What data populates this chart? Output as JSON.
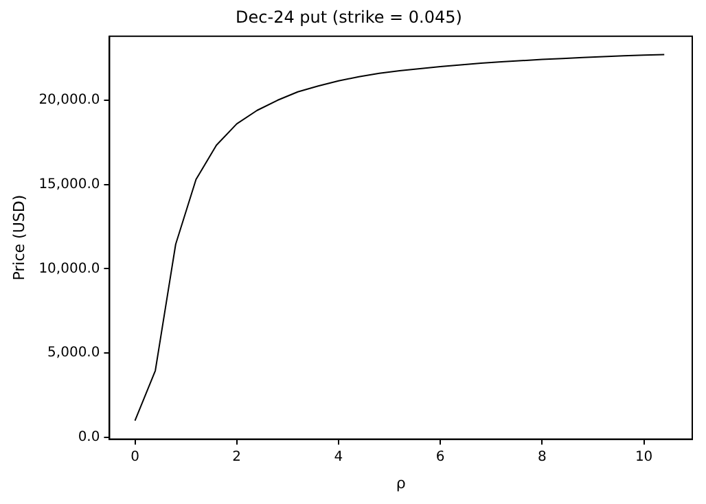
{
  "chart_data": {
    "type": "line",
    "title": "Dec-24 put (strike = 0.045)",
    "xlabel": "ρ",
    "ylabel": "Price (USD)",
    "x": [
      0,
      0.4,
      0.8,
      1.2,
      1.6,
      2.0,
      2.4,
      2.8,
      3.2,
      3.6,
      4.0,
      4.4,
      4.8,
      5.2,
      5.6,
      6.0,
      6.4,
      6.8,
      7.2,
      7.6,
      8.0,
      8.4,
      8.8,
      9.2,
      9.6,
      10.0,
      10.4
    ],
    "series": [
      {
        "color": "#000000",
        "values": [
          980,
          3950,
          11450,
          15300,
          17330,
          18600,
          19400,
          20000,
          20500,
          20850,
          21150,
          21400,
          21600,
          21750,
          21880,
          22000,
          22100,
          22200,
          22280,
          22350,
          22430,
          22480,
          22540,
          22590,
          22640,
          22680,
          22715
        ]
      }
    ],
    "xlim": [
      -0.5,
      10.95
    ],
    "ylim": [
      -120,
      23800
    ],
    "xticks": [
      0,
      2,
      4,
      6,
      8,
      10
    ],
    "yticks": [
      {
        "value": 0,
        "label": "0.0"
      },
      {
        "value": 5000,
        "label": "5,000.0"
      },
      {
        "value": 10000,
        "label": "10,000.0"
      },
      {
        "value": 15000,
        "label": "15,000.0"
      },
      {
        "value": 20000,
        "label": "20,000.0"
      }
    ],
    "grid": false,
    "legend": false,
    "marker": "none",
    "line_style": "solid"
  }
}
